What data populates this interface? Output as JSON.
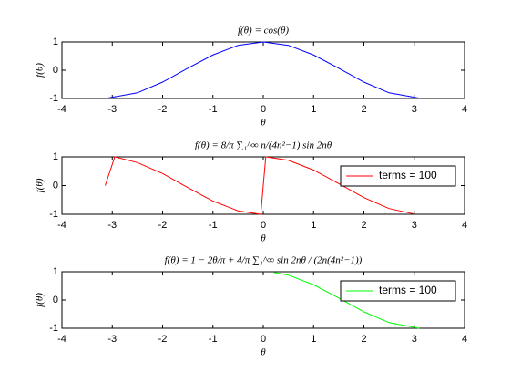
{
  "chart_data": [
    {
      "type": "line",
      "title": "f(θ) = cos(θ)",
      "xlabel": "θ",
      "ylabel": "f(θ)",
      "x": [
        -3.14,
        -2.5,
        -2,
        -1.5,
        -1,
        -0.5,
        0,
        0.5,
        1,
        1.5,
        2,
        2.5,
        3.14
      ],
      "series": [
        {
          "color": "#0000ff",
          "values": [
            -1,
            -0.8,
            -0.42,
            0.07,
            0.54,
            0.88,
            1,
            0.88,
            0.54,
            0.07,
            -0.42,
            -0.8,
            -1
          ]
        }
      ],
      "xlim": [
        -4,
        4
      ],
      "ylim": [
        -1,
        1
      ],
      "xticks": [
        -4,
        -3,
        -2,
        -1,
        0,
        1,
        2,
        3,
        4
      ],
      "yticks": [
        -1,
        0,
        1
      ]
    },
    {
      "type": "line",
      "title": "f(θ) = 8/π ∑₁^∞ n/(4n²−1) sin 2nθ",
      "xlabel": "θ",
      "ylabel": "f(θ)",
      "x": [
        -3.14,
        -2.95,
        -2.5,
        -2,
        -1.5,
        -1,
        -0.5,
        -0.05,
        0,
        0.05,
        0.5,
        1,
        1.5,
        2,
        2.5,
        3
      ],
      "series": [
        {
          "name": "terms = 100",
          "color": "#ff0000",
          "values": [
            0,
            1,
            0.8,
            0.42,
            -0.07,
            -0.54,
            -0.88,
            -1,
            0,
            1,
            0.88,
            0.54,
            0.07,
            -0.42,
            -0.8,
            -0.99
          ]
        }
      ],
      "xlim": [
        -4,
        4
      ],
      "ylim": [
        -1,
        1
      ],
      "xticks": [
        -4,
        -3,
        -2,
        -1,
        0,
        1,
        2,
        3,
        4
      ],
      "yticks": [
        -1,
        0,
        1
      ],
      "legend": "northeast"
    },
    {
      "type": "line",
      "title": "f(θ) = 1 − 2θ/π + 4/π ∑₁^∞ sin 2nθ / (2n(4n²−1))",
      "xlabel": "θ",
      "ylabel": "f(θ)",
      "x": [
        0.2,
        0.5,
        1,
        1.5,
        2,
        2.5,
        3.1
      ],
      "series": [
        {
          "name": "terms = 100",
          "color": "#00ff00",
          "values": [
            0.98,
            0.88,
            0.54,
            0.07,
            -0.42,
            -0.8,
            -1
          ]
        }
      ],
      "xlim": [
        -4,
        4
      ],
      "ylim": [
        -1,
        1
      ],
      "xticks": [
        -4,
        -3,
        -2,
        -1,
        0,
        1,
        2,
        3,
        4
      ],
      "yticks": [
        -1,
        0,
        1
      ],
      "legend": "northeast"
    }
  ]
}
